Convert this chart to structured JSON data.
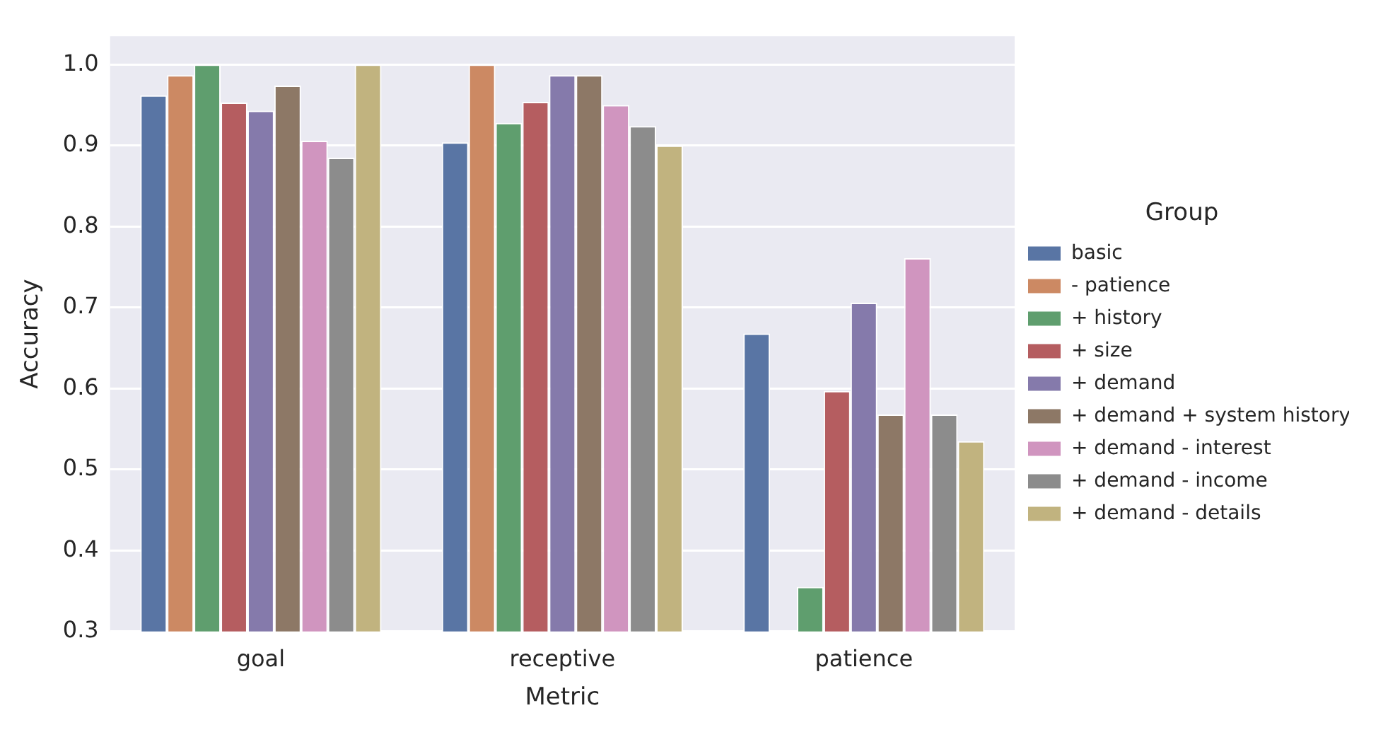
{
  "chart_data": {
    "type": "bar",
    "xlabel": "Metric",
    "ylabel": "Accuracy",
    "legend_title": "Group",
    "categories": [
      "goal",
      "receptive",
      "patience"
    ],
    "series": [
      {
        "name": "basic",
        "color": "#5975a4",
        "values": [
          0.962,
          0.904,
          0.668
        ]
      },
      {
        "name": "- patience",
        "color": "#cc8963",
        "values": [
          0.987,
          1.0,
          null
        ]
      },
      {
        "name": "+ history",
        "color": "#5f9e6e",
        "values": [
          1.0,
          0.928,
          0.355
        ]
      },
      {
        "name": "+ size",
        "color": "#b55d60",
        "values": [
          0.953,
          0.954,
          0.597
        ]
      },
      {
        "name": "+ demand",
        "color": "#857aab",
        "values": [
          0.943,
          0.987,
          0.706
        ]
      },
      {
        "name": "+ demand + system history",
        "color": "#8d7866",
        "values": [
          0.974,
          0.987,
          0.568
        ]
      },
      {
        "name": "+ demand - interest",
        "color": "#d095bf",
        "values": [
          0.906,
          0.95,
          0.761
        ]
      },
      {
        "name": "+ demand - income",
        "color": "#8c8c8c",
        "values": [
          0.885,
          0.924,
          0.568
        ]
      },
      {
        "name": "+ demand - details",
        "color": "#c1b37f",
        "values": [
          1.0,
          0.9,
          0.535
        ]
      }
    ],
    "ylim": [
      0.3,
      1.035
    ],
    "yticks": [
      0.3,
      0.4,
      0.5,
      0.6,
      0.7,
      0.8,
      0.9,
      {
        "value": 1.0,
        "label": "1.0"
      }
    ],
    "grid": "y",
    "legend": "right"
  }
}
